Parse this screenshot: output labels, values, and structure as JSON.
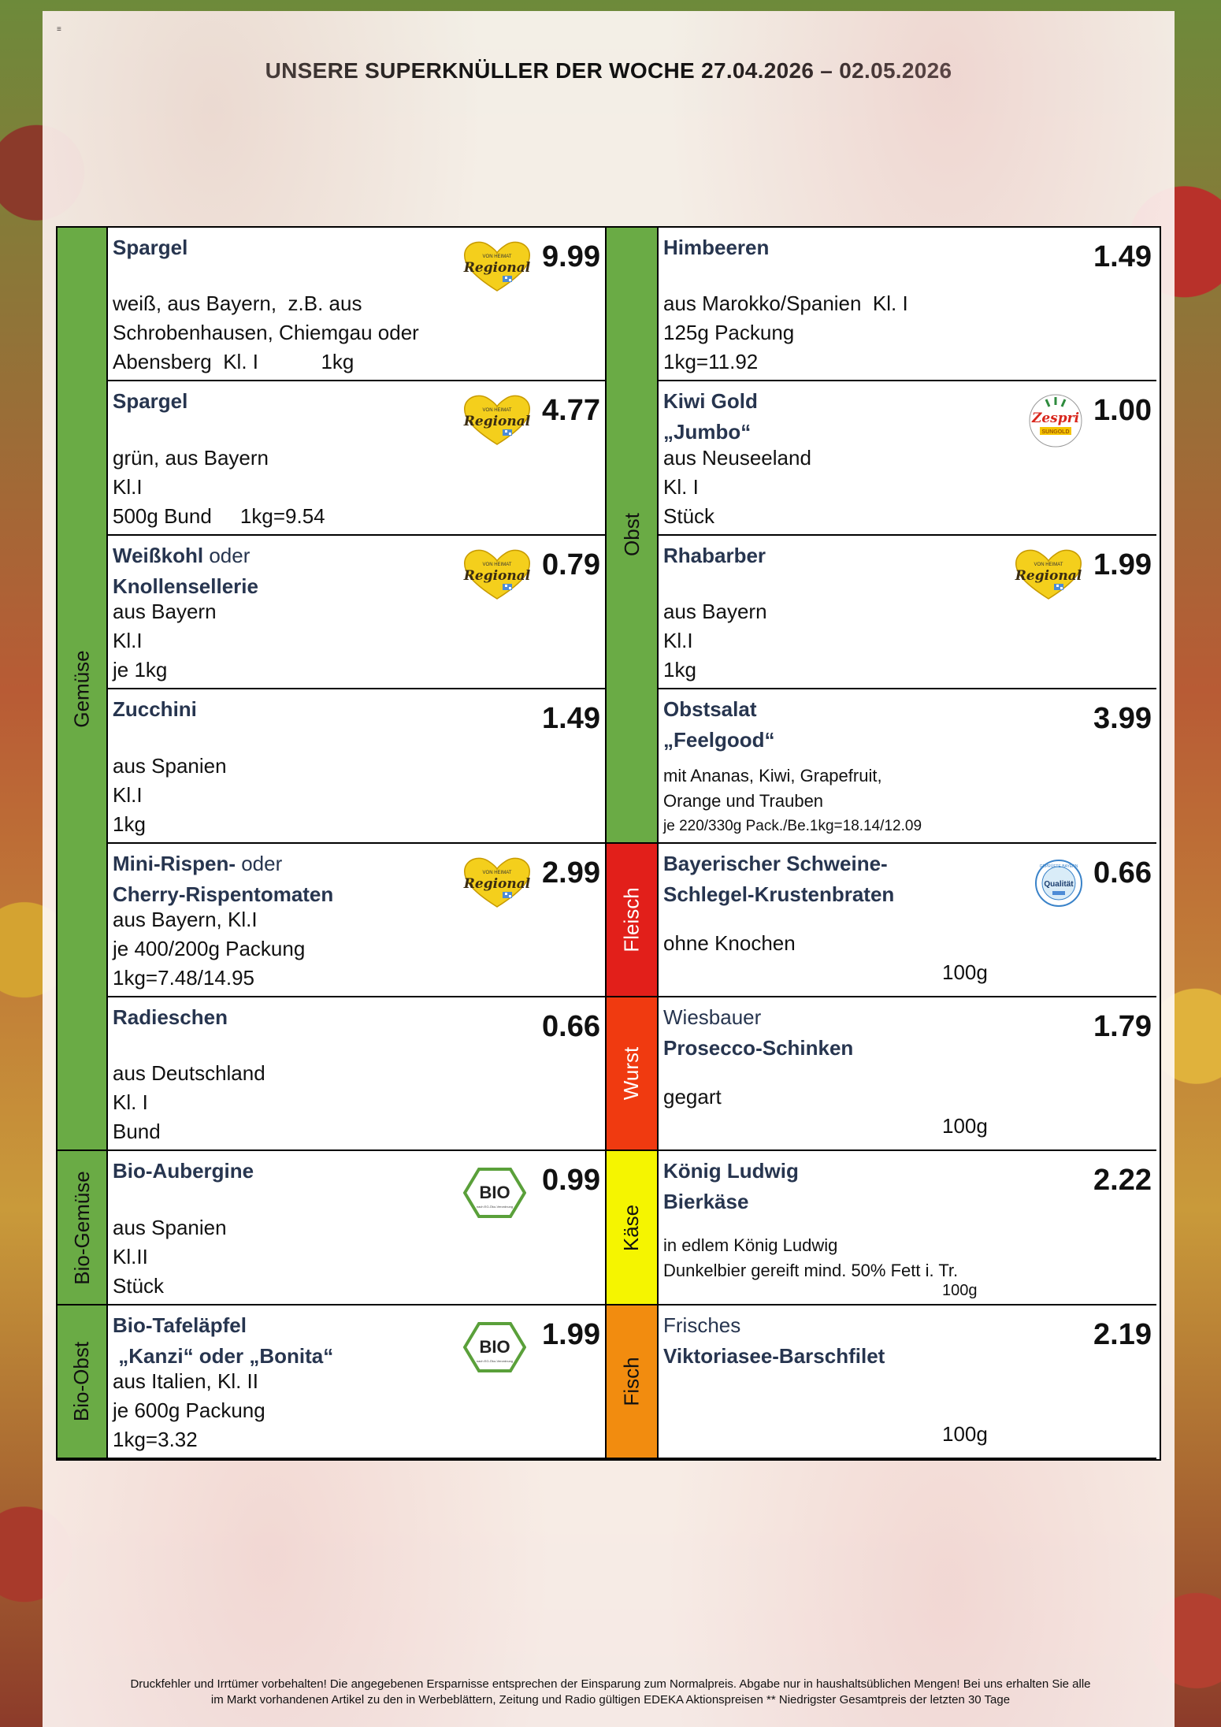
{
  "header": {
    "corner_mark": "≡",
    "headline": "UNSERE SUPERKNÜLLER DER WOCHE  27.04.2026 – 02.05.2026"
  },
  "colors": {
    "gemuese": "#6aab45",
    "obst": "#6aab45",
    "fleisch": "#e21f1a",
    "wurst": "#f03a10",
    "kaese": "#f5f500",
    "fisch": "#f28c0f"
  },
  "categories": {
    "gemuese": "Gemüse",
    "bio_gemuese": "Bio-Gemüse",
    "bio_obst": "Bio-Obst",
    "obst": "Obst",
    "fleisch": "Fleisch",
    "wurst": "Wurst",
    "kaese": "Käse",
    "fisch": "Fisch"
  },
  "badges": {
    "regional_top": "VON HEIMAT",
    "regional_main": "Regional",
    "bio": "BIO",
    "bio_sub": "nach EG-Öko-Verordnung",
    "zespri": "Zespri",
    "zespri_sub": "SUNGOLD",
    "qualitaet": "Qualität",
    "qualitaet_ring": "GEPRÜFTE BAYERN"
  },
  "left": [
    {
      "title": "Spargel",
      "title_normal": "",
      "title2": "",
      "price": "9.99",
      "badge": "regional-icon",
      "lines": [
        "weiß, aus Bayern,  z.B. aus",
        "Schrobenhausen, Chiemgau oder",
        "Abensberg  Kl. I           1kg"
      ]
    },
    {
      "title": "Spargel",
      "title_normal": "",
      "title2": "",
      "price": "4.77",
      "badge": "regional-icon",
      "lines": [
        "grün, aus Bayern",
        "Kl.I",
        "500g Bund     1kg=9.54"
      ]
    },
    {
      "title": "Weißkohl",
      "title_normal": " oder",
      "title2": "Knollensellerie",
      "price": "0.79",
      "badge": "regional-icon",
      "lines": [
        "aus Bayern",
        "Kl.I",
        "je 1kg"
      ]
    },
    {
      "title": "Zucchini",
      "title_normal": "",
      "title2": "",
      "price": "1.49",
      "badge": "",
      "lines": [
        "aus Spanien",
        "Kl.I",
        "1kg"
      ]
    },
    {
      "title": "Mini-Rispen-",
      "title_normal": " oder",
      "title2": "Cherry-Rispentomaten",
      "price": "2.99",
      "badge": "regional-icon",
      "lines": [
        "aus Bayern, Kl.I",
        "je 400/200g Packung",
        "1kg=7.48/14.95"
      ]
    },
    {
      "title": "Radieschen",
      "title_normal": "",
      "title2": "",
      "price": "0.66",
      "badge": "",
      "lines": [
        "aus Deutschland",
        "Kl. I",
        "Bund"
      ]
    },
    {
      "title": "Bio-Aubergine",
      "title_normal": "",
      "title2": "",
      "price": "0.99",
      "badge": "bio-icon",
      "lines": [
        "aus Spanien",
        "Kl.II",
        "Stück"
      ]
    },
    {
      "title": "Bio-Tafeläpfel",
      "title_normal": "",
      "title2": " „Kanzi“ oder „Bonita“",
      "price": "1.99",
      "badge": "bio-icon",
      "lines": [
        "aus Italien, Kl. II",
        "je 600g Packung",
        "1kg=3.32"
      ]
    }
  ],
  "right": [
    {
      "pre": "",
      "title": "Himbeeren",
      "title2": "",
      "price": "1.49",
      "badge": "",
      "lines": [
        "aus Marokko/Spanien  Kl. I",
        "125g Packung",
        "1kg=11.92"
      ],
      "small": false,
      "gram": ""
    },
    {
      "pre": "",
      "title": "Kiwi Gold",
      "title2": "„Jumbo“",
      "price": "1.00",
      "badge": "zespri-icon",
      "lines": [
        "aus Neuseeland",
        "Kl. I",
        "Stück"
      ],
      "small": false,
      "gram": ""
    },
    {
      "pre": "",
      "title": "Rhabarber",
      "title2": "",
      "price": "1.99",
      "badge": "regional-icon",
      "lines": [
        "aus Bayern",
        "Kl.I",
        "1kg"
      ],
      "small": false,
      "gram": ""
    },
    {
      "pre": "",
      "title": "Obstsalat",
      "title2": "„Feelgood“",
      "price": "3.99",
      "badge": "",
      "lines": [
        "mit Ananas, Kiwi, Grapefruit,",
        "Orange und Trauben",
        "je 220/330g Pack./Be.1kg=18.14/12.09"
      ],
      "small": true,
      "gram": ""
    },
    {
      "pre": "",
      "title": "Bayerischer Schweine-",
      "title2": "Schlegel-Krustenbraten",
      "price": "0.66",
      "badge": "qualitaet-icon",
      "lines": [
        "ohne Knochen"
      ],
      "small": false,
      "gram": "100g"
    },
    {
      "pre": "Wiesbauer",
      "title": "Prosecco-Schinken",
      "title2": "",
      "price": "1.79",
      "badge": "",
      "lines": [
        "gegart"
      ],
      "small": false,
      "gram": "100g"
    },
    {
      "pre": "",
      "title": "König Ludwig",
      "title2": "Bierkäse",
      "price": "2.22",
      "badge": "",
      "lines": [
        "in edlem König Ludwig",
        "Dunkelbier gereift mind. 50% Fett i. Tr."
      ],
      "small": true,
      "gram": "100g"
    },
    {
      "pre": "Frisches",
      "title": "Viktoriasee-Barschfilet",
      "title2": "",
      "price": "2.19",
      "badge": "",
      "lines": [],
      "small": false,
      "gram": "100g"
    }
  ],
  "footer": {
    "line1": "Druckfehler und Irrtümer vorbehalten! Die angegebenen Ersparnisse entsprechen der Einsparung zum Normalpreis. Abgabe nur in haushaltsüblichen Mengen! Bei uns erhalten Sie alle",
    "line2": "im Markt vorhandenen Artikel zu den in Werbeblättern, Zeitung und Radio gültigen EDEKA Aktionspreisen  ** Niedrigster Gesamtpreis der letzten 30 Tage"
  }
}
